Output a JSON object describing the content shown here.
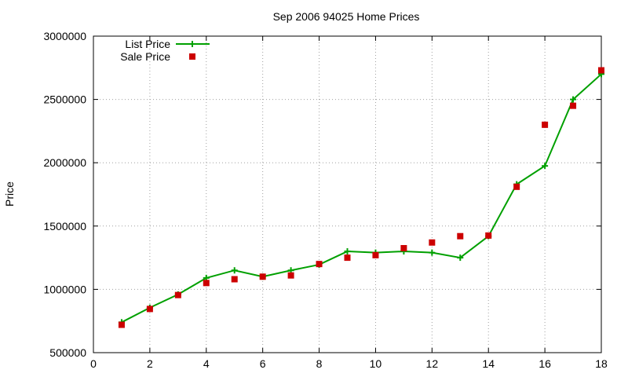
{
  "chart_data": {
    "type": "line",
    "title": "Sep 2006 94025 Home Prices",
    "xlabel": "",
    "ylabel": "Price",
    "xlim": [
      0,
      18
    ],
    "ylim": [
      500000,
      3000000
    ],
    "xticks": [
      0,
      2,
      4,
      6,
      8,
      10,
      12,
      14,
      16,
      18
    ],
    "yticks": [
      500000,
      1000000,
      1500000,
      2000000,
      2500000,
      3000000
    ],
    "grid": true,
    "legend_position": "top-left",
    "series": [
      {
        "name": "List Price",
        "style": "line-points",
        "color": "#00a000",
        "x": [
          1,
          2,
          3,
          4,
          5,
          6,
          7,
          8,
          9,
          10,
          11,
          12,
          13,
          14,
          15,
          16,
          17,
          18
        ],
        "values": [
          740000,
          855000,
          960000,
          1090000,
          1150000,
          1100000,
          1150000,
          1195000,
          1300000,
          1290000,
          1300000,
          1290000,
          1250000,
          1420000,
          1830000,
          1975000,
          2500000,
          2700000
        ]
      },
      {
        "name": "Sale Price",
        "style": "points",
        "color": "#cc0000",
        "x": [
          1,
          2,
          3,
          4,
          5,
          6,
          7,
          8,
          9,
          10,
          11,
          12,
          13,
          14,
          15,
          16,
          17,
          18
        ],
        "values": [
          720000,
          845000,
          955000,
          1050000,
          1080000,
          1100000,
          1110000,
          1200000,
          1250000,
          1270000,
          1325000,
          1370000,
          1420000,
          1425000,
          1810000,
          2300000,
          2450000,
          2730000
        ]
      }
    ]
  }
}
